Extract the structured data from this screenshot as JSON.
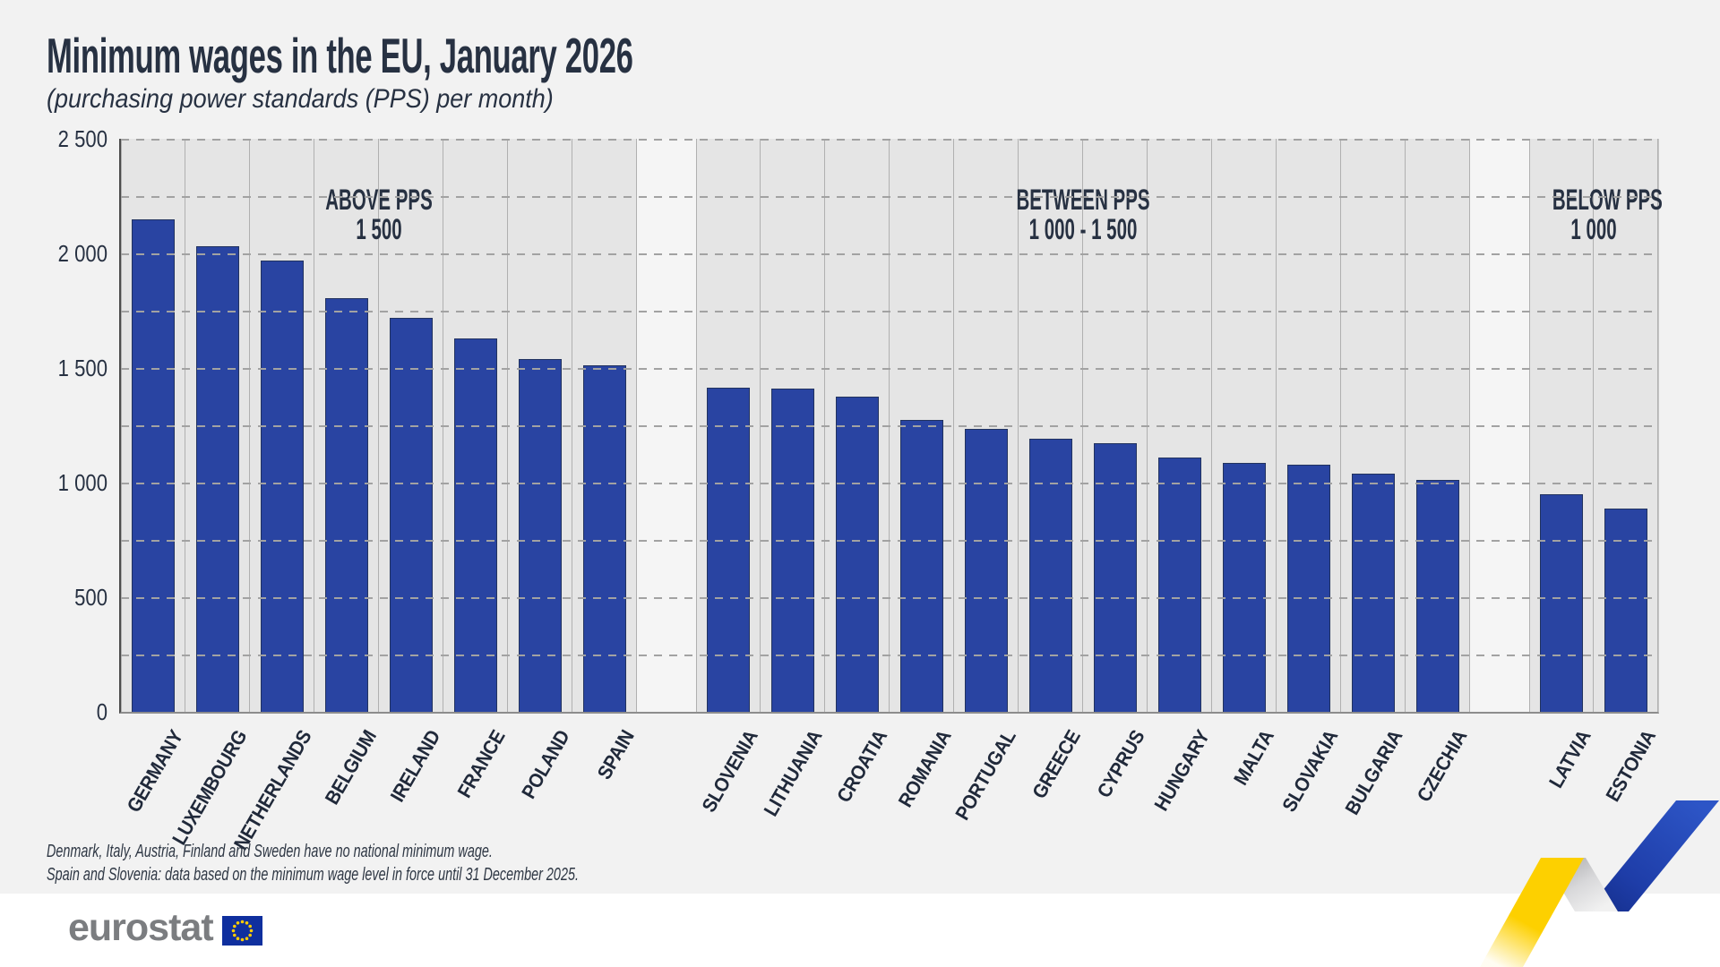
{
  "title": "Minimum wages in the EU, January 2026",
  "subtitle": "(purchasing power standards (PPS) per month)",
  "chart_data": {
    "type": "bar",
    "unit": "PPS per month",
    "ylim": [
      0,
      2500
    ],
    "grid_interval": 250,
    "grid_style": "dashed",
    "bar_color": "#2944a2",
    "yticks": [
      {
        "value": 2500,
        "label": "2 500"
      },
      {
        "value": 2000,
        "label": "2 000"
      },
      {
        "value": 1500,
        "label": "1 500"
      },
      {
        "value": 1000,
        "label": "1 000"
      },
      {
        "value": 500,
        "label": "500"
      },
      {
        "value": 0,
        "label": "0"
      }
    ],
    "groups": [
      {
        "label_line1": "ABOVE PPS",
        "label_line2": "1 500",
        "countries": [
          {
            "name": "GERMANY",
            "value": 2150
          },
          {
            "name": "LUXEMBOURG",
            "value": 2030
          },
          {
            "name": "NETHERLANDS",
            "value": 1970
          },
          {
            "name": "BELGIUM",
            "value": 1805
          },
          {
            "name": "IRELAND",
            "value": 1720
          },
          {
            "name": "FRANCE",
            "value": 1630
          },
          {
            "name": "POLAND",
            "value": 1540
          },
          {
            "name": "SPAIN",
            "value": 1510
          }
        ]
      },
      {
        "label_line1": "BETWEEN PPS",
        "label_line2": "1 000 - 1 500",
        "countries": [
          {
            "name": "SLOVENIA",
            "value": 1415
          },
          {
            "name": "LITHUANIA",
            "value": 1410
          },
          {
            "name": "CROATIA",
            "value": 1375
          },
          {
            "name": "ROMANIA",
            "value": 1275
          },
          {
            "name": "PORTUGAL",
            "value": 1235
          },
          {
            "name": "GREECE",
            "value": 1190
          },
          {
            "name": "CYPRUS",
            "value": 1170
          },
          {
            "name": "HUNGARY",
            "value": 1110
          },
          {
            "name": "MALTA",
            "value": 1085
          },
          {
            "name": "SLOVAKIA",
            "value": 1080
          },
          {
            "name": "BULGARIA",
            "value": 1040
          },
          {
            "name": "CZECHIA",
            "value": 1010
          }
        ]
      },
      {
        "label_line1": "BELOW PPS",
        "label_line2": "1 000",
        "countries": [
          {
            "name": "LATVIA",
            "value": 950
          },
          {
            "name": "ESTONIA",
            "value": 885
          }
        ]
      }
    ]
  },
  "footnotes": [
    "Denmark, Italy, Austria, Finland and Sweden have no national minimum wage.",
    "Spain and Slovenia: data based on the minimum wage level in force until 31 December 2025."
  ],
  "logo": {
    "text": "eurostat"
  },
  "colors": {
    "accent_blue": "#2944a2",
    "ribbon_yellow": "#fdd000",
    "ribbon_blue": "#2a4fc0",
    "flag_blue": "#0f2f9e",
    "flag_stars": "#ffcc00"
  }
}
